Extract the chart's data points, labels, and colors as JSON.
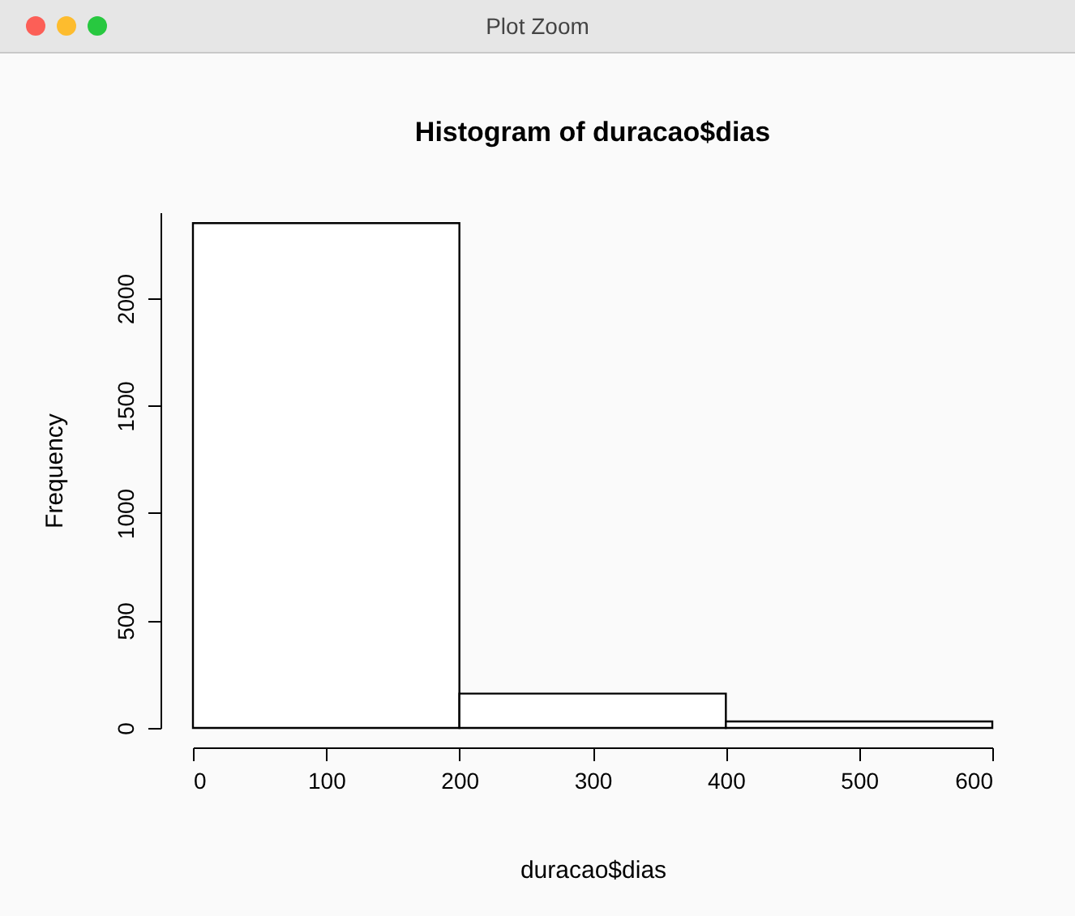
{
  "chart_data": {
    "type": "histogram",
    "title": "Histogram of duracao$dias",
    "xlabel": "duracao$dias",
    "ylabel": "Frequency",
    "bins": [
      0,
      200,
      400,
      600
    ],
    "values": [
      2350,
      160,
      30
    ],
    "color": "#ffffff",
    "xlim": [
      0,
      600
    ],
    "xticks": [
      0,
      100,
      200,
      300,
      400,
      500,
      600
    ],
    "ylim": [
      0,
      2400
    ],
    "yticks": [
      0,
      500,
      1000,
      1500,
      2000
    ],
    "grid": false,
    "annotations": [
      "Plot Zoom"
    ]
  }
}
